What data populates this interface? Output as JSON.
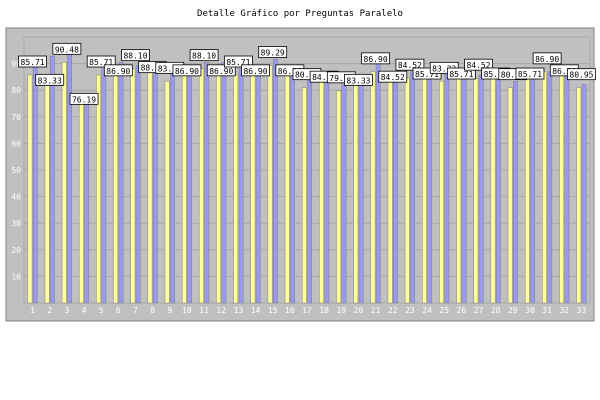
{
  "chart_data": {
    "type": "bar",
    "title": "Detalle Gráfico por Preguntas Paralelo",
    "xlabel": "",
    "ylabel": "",
    "ylim": [
      0,
      100
    ],
    "yticks": [
      10,
      20,
      30,
      40,
      50,
      60,
      70,
      80,
      90
    ],
    "grid": true,
    "legend": "none",
    "categories": [
      "1",
      "2",
      "3",
      "4",
      "5",
      "6",
      "7",
      "8",
      "9",
      "10",
      "11",
      "12",
      "13",
      "14",
      "15",
      "16",
      "17",
      "18",
      "19",
      "20",
      "21",
      "22",
      "23",
      "24",
      "25",
      "26",
      "27",
      "28",
      "29",
      "30",
      "31",
      "32",
      "33"
    ],
    "series": [
      {
        "color": "#ffff99",
        "values": [
          85.71,
          83.33,
          90.48,
          76.19,
          85.71,
          86.9,
          88.1,
          88.1,
          83.33,
          86.9,
          88.1,
          86.9,
          85.71,
          86.9,
          89.29,
          86.9,
          80.95,
          84.52,
          79.76,
          83.33,
          86.9,
          84.52,
          84.52,
          85.71,
          83.33,
          85.71,
          84.52,
          85.71,
          80.95,
          85.71,
          86.9,
          86.9,
          80.95
        ]
      },
      {
        "color": "#9999ee",
        "values": [
          92.86,
          92.86,
          95.24,
          78.57,
          92.86,
          90.48,
          89.29,
          89.29,
          86.9,
          89.29,
          90.48,
          90.48,
          88.1,
          86.9,
          91.67,
          85.71,
          86.9,
          86.9,
          85.71,
          84.52,
          90.48,
          86.9,
          86.9,
          86.9,
          86.9,
          88.1,
          85.71,
          88.1,
          83.33,
          88.1,
          86.9,
          88.1,
          82.14
        ]
      }
    ],
    "labeled_series": 0
  }
}
